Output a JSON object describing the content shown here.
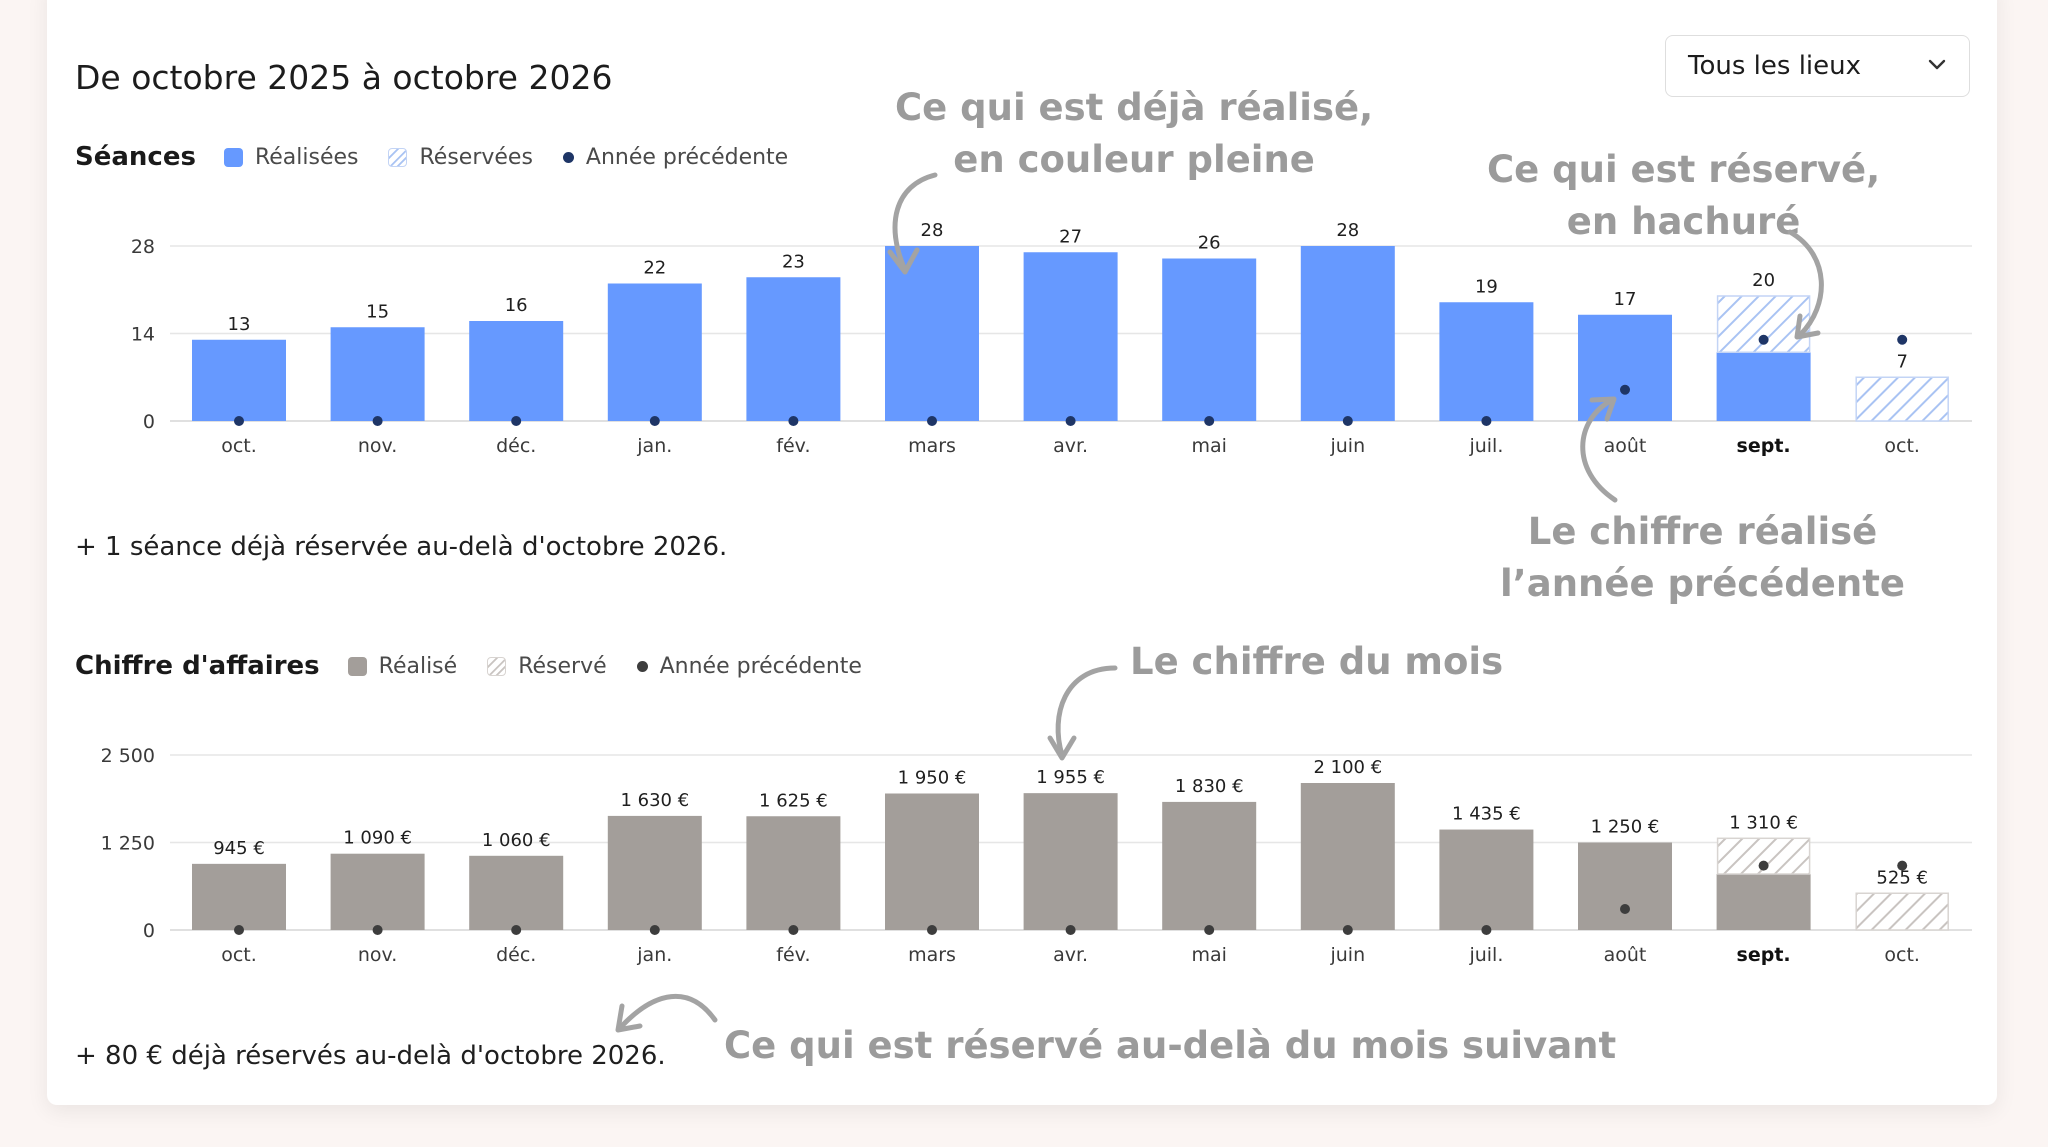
{
  "title": "De octobre 2025 à octobre 2026",
  "location_select": {
    "value": "Tous les lieux"
  },
  "seances": {
    "heading": "Séances",
    "legend": {
      "realized": "Réalisées",
      "reserved": "Réservées",
      "previous": "Année précédente"
    },
    "note": "+ 1 séance déjà réservée au-delà d'octobre 2026."
  },
  "revenue": {
    "heading": "Chiffre d'affaires",
    "legend": {
      "realized": "Réalisé",
      "reserved": "Réservé",
      "previous": "Année précédente"
    },
    "note": "+ 80 € déjà réservés au-delà d'octobre 2026."
  },
  "colors": {
    "seances_bar": "#6699ff",
    "seances_hatch": "#a9c3f3",
    "revenue_bar": "#a39e9a",
    "revenue_hatch": "#c9c4c1",
    "prev_dot_seances": "#1e3566",
    "prev_dot_revenue": "#3d3d3d",
    "annotation": "#9b9b9b"
  },
  "annotations": {
    "realized": [
      "Ce qui est déjà réalisé,",
      "en couleur pleine"
    ],
    "reserved": [
      "Ce qui est réservé,",
      "en hachuré"
    ],
    "previous": [
      "Le chiffre réalisé",
      "l’année précédente"
    ],
    "month_total": "Le chiffre du mois",
    "beyond": "Ce qui est réservé au-delà du mois suivant"
  },
  "chart_data": [
    {
      "type": "bar",
      "name": "Séances",
      "categories": [
        "oct.",
        "nov.",
        "déc.",
        "jan.",
        "fév.",
        "mars",
        "avr.",
        "mai",
        "juin",
        "juil.",
        "août",
        "sept.",
        "oct."
      ],
      "current_category_index": 11,
      "series": [
        {
          "name": "Réalisées",
          "values": [
            13,
            15,
            16,
            22,
            23,
            28,
            27,
            26,
            28,
            19,
            17,
            11,
            0
          ]
        },
        {
          "name": "Réservées",
          "values": [
            0,
            0,
            0,
            0,
            0,
            0,
            0,
            0,
            0,
            0,
            0,
            9,
            7
          ]
        },
        {
          "name": "Année précédente",
          "values": [
            0,
            0,
            0,
            0,
            0,
            0,
            0,
            0,
            0,
            0,
            5,
            13,
            13
          ]
        }
      ],
      "total_labels": [
        "13",
        "15",
        "16",
        "22",
        "23",
        "28",
        "27",
        "26",
        "28",
        "19",
        "17",
        "20",
        "7"
      ],
      "yticks": [
        0,
        14,
        28
      ],
      "ylim": [
        0,
        28
      ],
      "grid": true
    },
    {
      "type": "bar",
      "name": "Chiffre d'affaires",
      "categories": [
        "oct.",
        "nov.",
        "déc.",
        "jan.",
        "fév.",
        "mars",
        "avr.",
        "mai",
        "juin",
        "juil.",
        "août",
        "sept.",
        "oct."
      ],
      "current_category_index": 11,
      "series": [
        {
          "name": "Réalisé",
          "values": [
            945,
            1090,
            1060,
            1630,
            1625,
            1950,
            1955,
            1830,
            2100,
            1435,
            1250,
            800,
            0
          ]
        },
        {
          "name": "Réservé",
          "values": [
            0,
            0,
            0,
            0,
            0,
            0,
            0,
            0,
            0,
            0,
            0,
            510,
            525
          ]
        },
        {
          "name": "Année précédente",
          "values": [
            0,
            0,
            0,
            0,
            0,
            0,
            0,
            0,
            0,
            0,
            300,
            920,
            920
          ]
        }
      ],
      "total_labels": [
        "945 €",
        "1 090 €",
        "1 060 €",
        "1 630 €",
        "1 625 €",
        "1 950 €",
        "1 955 €",
        "1 830 €",
        "2 100 €",
        "1 435 €",
        "1 250 €",
        "1 310 €",
        "525 €"
      ],
      "yticks": [
        "0",
        "1 250",
        "2 500"
      ],
      "ytick_values": [
        0,
        1250,
        2500
      ],
      "ylim": [
        0,
        2500
      ],
      "grid": true
    }
  ]
}
